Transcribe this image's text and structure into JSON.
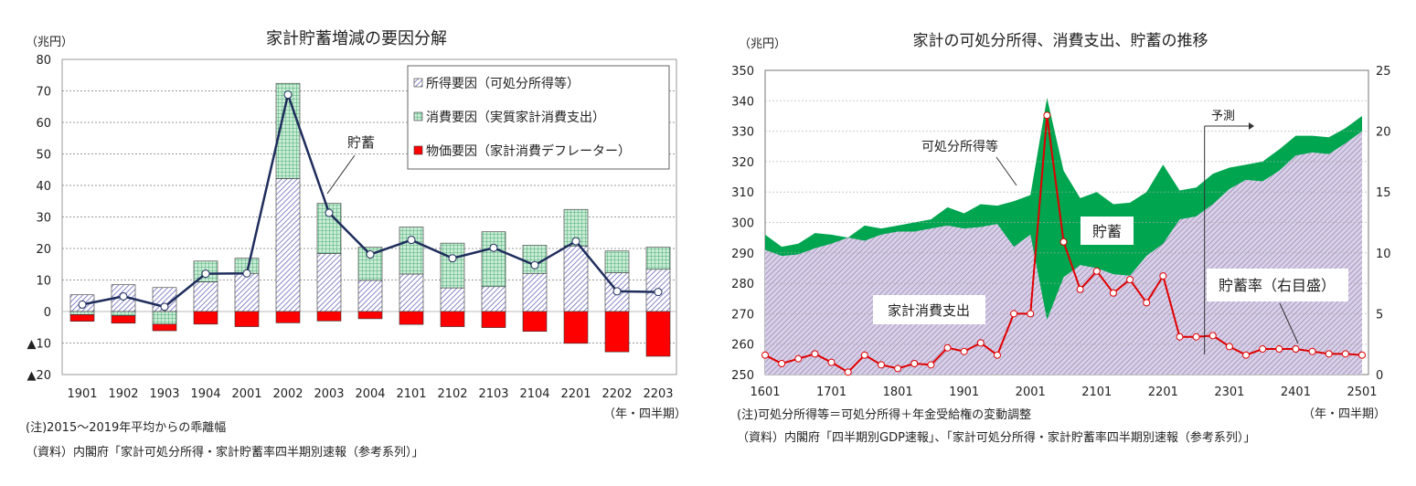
{
  "chart_data": [
    {
      "type": "bar",
      "title": "家計貯蓄増減の要因分解",
      "ylabel": "（兆円）",
      "xlabel": "（年・四半期）",
      "ylim": [
        -20,
        80
      ],
      "yticks": [
        {
          "v": 80,
          "label": "80"
        },
        {
          "v": 70,
          "label": "70"
        },
        {
          "v": 60,
          "label": "60"
        },
        {
          "v": 50,
          "label": "50"
        },
        {
          "v": 40,
          "label": "40"
        },
        {
          "v": 30,
          "label": "30"
        },
        {
          "v": 20,
          "label": "20"
        },
        {
          "v": 10,
          "label": "10"
        },
        {
          "v": 0,
          "label": "0"
        },
        {
          "v": -10,
          "label": "▲10"
        },
        {
          "v": -20,
          "label": "▲20"
        }
      ],
      "categories": [
        "1901",
        "1902",
        "1903",
        "1904",
        "2001",
        "2002",
        "2003",
        "2004",
        "2101",
        "2102",
        "2103",
        "2104",
        "2201",
        "2202",
        "2203"
      ],
      "series": [
        {
          "name": "所得要因（可処分所得等）",
          "kind": "bar",
          "color": "#9999cc",
          "values": [
            5.3,
            8.5,
            7.6,
            9.4,
            12.1,
            42.2,
            18.4,
            9.9,
            11.9,
            7.5,
            7.9,
            12.1,
            20.8,
            12.3,
            13.4
          ]
        },
        {
          "name": "消費要因（実質家計消費支出）",
          "kind": "bar",
          "color": "#2e9e5b",
          "values": [
            -1.0,
            -1.3,
            -4.0,
            6.6,
            4.8,
            30.2,
            15.9,
            10.5,
            14.9,
            14.2,
            17.4,
            8.9,
            11.6,
            6.9,
            7.0
          ]
        },
        {
          "name": "物価要因（家計消費デフレーター）",
          "kind": "bar",
          "color": "#ff0000",
          "values": [
            -2.1,
            -2.4,
            -2.1,
            -4.0,
            -4.8,
            -3.6,
            -3.0,
            -2.3,
            -4.1,
            -4.8,
            -5.1,
            -6.3,
            -10.1,
            -12.8,
            -14.2
          ]
        },
        {
          "name": "貯蓄",
          "kind": "line",
          "color": "#1f2d5c",
          "values": [
            2.2,
            4.8,
            1.5,
            12.0,
            12.1,
            68.8,
            31.3,
            18.1,
            22.7,
            16.9,
            20.2,
            14.7,
            22.3,
            6.4,
            6.2
          ]
        }
      ],
      "annotations": {
        "saving_label": "貯蓄"
      },
      "legend": "top-right"
    },
    {
      "type": "area",
      "title": "家計の可処分所得、消費支出、貯蓄の推移",
      "ylabel": "（兆円）",
      "xlabel": "（年・四半期）",
      "ylim": [
        250,
        350
      ],
      "y2lim": [
        0,
        25
      ],
      "yticks": [
        "250",
        "260",
        "270",
        "280",
        "290",
        "300",
        "310",
        "320",
        "330",
        "340",
        "350"
      ],
      "y2ticks": [
        "0",
        "5",
        "10",
        "15",
        "20",
        "25"
      ],
      "x": [
        "1601",
        "1602",
        "1603",
        "1604",
        "1701",
        "1702",
        "1703",
        "1704",
        "1801",
        "1802",
        "1803",
        "1804",
        "1901",
        "1902",
        "1903",
        "1904",
        "2001",
        "2002",
        "2003",
        "2004",
        "2101",
        "2102",
        "2103",
        "2104",
        "2201",
        "2202",
        "2203",
        "2204",
        "2301",
        "2302",
        "2303",
        "2304",
        "2401",
        "2402",
        "2403",
        "2404",
        "2501"
      ],
      "xtick_labels": [
        "1601",
        "1701",
        "1801",
        "1901",
        "2001",
        "2101",
        "2201",
        "2301",
        "2401",
        "2501"
      ],
      "series": [
        {
          "name": "可処分所得等",
          "kind": "area",
          "color": "#00a550",
          "values": [
            296,
            292,
            293,
            296.5,
            296,
            295,
            299,
            298,
            299,
            300,
            301,
            305,
            303,
            306,
            305.5,
            307,
            309,
            341,
            317,
            308,
            310,
            306,
            306.5,
            310,
            319,
            310.5,
            311.5,
            316,
            318,
            319,
            320,
            324,
            328.5,
            328.5,
            328,
            331,
            335
          ]
        },
        {
          "name": "家計消費支出",
          "kind": "area",
          "color": "#b3a6cc",
          "values": [
            291,
            289,
            289.5,
            291.5,
            293,
            295,
            294,
            296,
            297,
            297,
            298,
            299,
            298,
            298.5,
            299.5,
            292,
            296,
            268,
            282,
            286,
            285,
            283,
            282.5,
            289,
            293,
            301,
            302,
            306,
            311,
            314,
            313.5,
            317,
            322,
            323,
            322.5,
            326,
            330
          ]
        },
        {
          "name": "貯蓄率（右目盛）",
          "kind": "line",
          "axis": "right",
          "color": "#e00000",
          "values": [
            1.6,
            0.9,
            1.3,
            1.7,
            1.0,
            0.2,
            1.6,
            0.8,
            0.5,
            0.9,
            0.8,
            2.2,
            1.9,
            2.6,
            1.6,
            5.0,
            5.0,
            21.3,
            10.9,
            7.0,
            8.5,
            6.7,
            7.8,
            5.9,
            8.1,
            3.1,
            3.1,
            3.2,
            2.3,
            1.6,
            2.1,
            2.1,
            2.1,
            1.9,
            1.7,
            1.7,
            1.6
          ]
        }
      ],
      "annotations": {
        "saving": "貯蓄",
        "forecast": "予測",
        "forecast_from": "2301"
      }
    }
  ],
  "notes": {
    "left_note": "(注)2015～2019年平均からの乖離幅",
    "left_source": "（資料）内閣府「家計可処分所得・家計貯蓄率四半期別速報（参考系列）」",
    "right_note": "(注)可処分所得等＝可処分所得＋年金受給権の変動調整",
    "right_source": "（資料）内閣府「四半期別GDP速報」、「家計可処分所得・家計貯蓄率四半期別速報（参考系列）」"
  }
}
